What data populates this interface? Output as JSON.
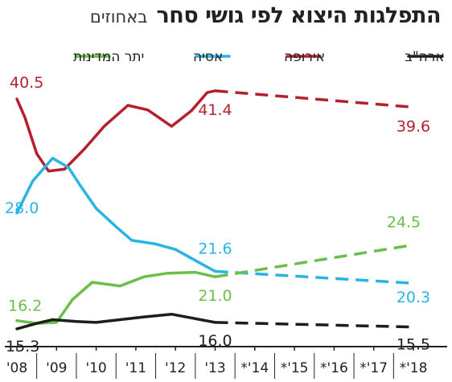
{
  "header": {
    "title": "התפלגות היצוא לפי גושי סחר",
    "subtitle": "באחוזים"
  },
  "chart_data": {
    "type": "line",
    "categories": [
      "'08",
      "'09",
      "'10",
      "'11",
      "'12",
      "'13",
      "*'14",
      "*'15",
      "*'16",
      "*'17",
      "*'18"
    ],
    "y_unit": "percent",
    "ylim": [
      10,
      48
    ],
    "grid": false,
    "legend_position": "top",
    "series": [
      {
        "name": "אירופה",
        "color": "#b5202e",
        "x": [
          2008,
          2008.2,
          2008.5,
          2008.8,
          2009.2,
          2009.7,
          2010.2,
          2010.8,
          2011.3,
          2011.9,
          2012.4,
          2012.8,
          2013,
          2018
        ],
        "values": [
          40.5,
          38.5,
          34.5,
          32.6,
          32.8,
          35.0,
          37.5,
          39.8,
          39.3,
          37.5,
          39.2,
          41.2,
          41.4,
          39.6
        ],
        "forecast_from_x": 2013
      },
      {
        "name": "אסיה",
        "color": "#29b4e4",
        "x": [
          2008,
          2008.4,
          2008.9,
          2009.3,
          2009.6,
          2010,
          2010.5,
          2010.9,
          2011.5,
          2012,
          2012.5,
          2013,
          2018
        ],
        "values": [
          28.0,
          31.5,
          34.0,
          33.0,
          31.0,
          28.5,
          26.5,
          25.0,
          24.6,
          24.0,
          22.8,
          21.6,
          20.3
        ],
        "forecast_from_x": 2013
      },
      {
        "name": "יתר המדינות",
        "color": "#6abf4b",
        "x": [
          2008,
          2008.5,
          2009,
          2009.4,
          2009.9,
          2010.6,
          2011.2,
          2011.8,
          2012.5,
          2013,
          2018
        ],
        "values": [
          16.2,
          15.9,
          16.0,
          18.5,
          20.4,
          20.0,
          21.0,
          21.4,
          21.5,
          21.0,
          24.5
        ],
        "forecast_from_x": 2013
      },
      {
        "name": "ארה\"ב",
        "color": "#1d1d1b",
        "x": [
          2008,
          2008.5,
          2008.9,
          2009.5,
          2010,
          2010.6,
          2011.2,
          2011.9,
          2012.4,
          2013,
          2018
        ],
        "values": [
          15.3,
          15.9,
          16.3,
          16.1,
          16.0,
          16.3,
          16.6,
          16.9,
          16.5,
          16.0,
          15.5
        ],
        "forecast_from_x": 2013
      }
    ],
    "data_labels": [
      {
        "series": "אירופה",
        "x": 2008,
        "text": "40.5"
      },
      {
        "series": "אירופה",
        "x": 2013,
        "text": "41.4"
      },
      {
        "series": "אירופה",
        "x": 2018,
        "text": "39.6"
      },
      {
        "series": "אסיה",
        "x": 2008,
        "text": "28.0"
      },
      {
        "series": "אסיה",
        "x": 2013,
        "text": "21.6"
      },
      {
        "series": "אסיה",
        "x": 2018,
        "text": "20.3"
      },
      {
        "series": "יתר המדינות",
        "x": 2008,
        "text": "16.2"
      },
      {
        "series": "יתר המדינות",
        "x": 2013,
        "text": "21.0"
      },
      {
        "series": "יתר המדינות",
        "x": 2018,
        "text": "24.5"
      },
      {
        "series": "ארה\"ב",
        "x": 2008,
        "text": "15.3"
      },
      {
        "series": "ארה\"ב",
        "x": 2013,
        "text": "16.0"
      },
      {
        "series": "ארה\"ב",
        "x": 2018,
        "text": "15.5"
      }
    ]
  }
}
